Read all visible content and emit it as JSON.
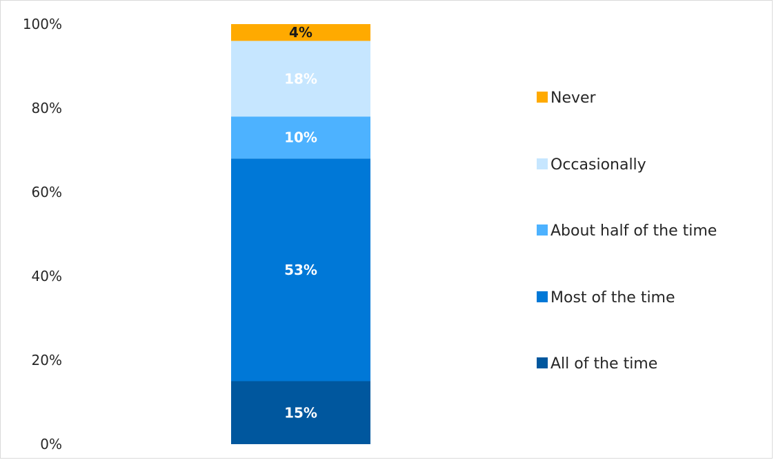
{
  "chart_data": {
    "type": "bar",
    "stacked": true,
    "categories": [
      ""
    ],
    "series": [
      {
        "name": "All of the time",
        "values": [
          15
        ],
        "label": "15%",
        "color": "#00579e",
        "label_color": "#ffffff"
      },
      {
        "name": "Most of the time",
        "values": [
          53
        ],
        "label": "53%",
        "color": "#0078d7",
        "label_color": "#ffffff"
      },
      {
        "name": "About half of the time",
        "values": [
          10
        ],
        "label": "10%",
        "color": "#4db2ff",
        "label_color": "#ffffff"
      },
      {
        "name": "Occasionally",
        "values": [
          18
        ],
        "label": "18%",
        "color": "#c6e6ff",
        "label_color": "#ffffff"
      },
      {
        "name": "Never",
        "values": [
          4
        ],
        "label": "4%",
        "color": "#ffaa00",
        "label_color": "#1a1a1a"
      }
    ],
    "ylim": [
      0,
      100
    ],
    "yticks": [
      "0%",
      "20%",
      "40%",
      "60%",
      "80%",
      "100%"
    ],
    "grid": false,
    "legend_position": "right",
    "title": "",
    "xlabel": "",
    "ylabel": ""
  }
}
